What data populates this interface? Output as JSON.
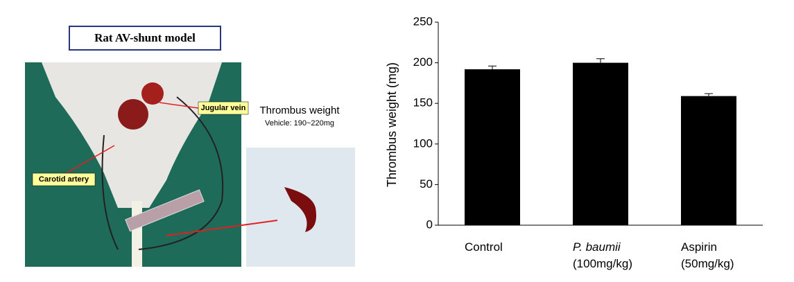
{
  "figure": {
    "title": "Rat AV-shunt model",
    "label_jugular": "Jugular vein",
    "label_carotid": "Carotid artery",
    "inset_title": "Thrombus weight",
    "inset_note": "Vehicle: 190~220mg"
  },
  "chart_data": {
    "type": "bar",
    "y_label": "Thrombus weight (mg)",
    "categories": [
      "Control",
      "P. baumii (100mg/kg)",
      "Aspirin (50mg/kg)"
    ],
    "values": [
      192,
      200,
      159
    ],
    "errors": [
      4,
      5,
      3
    ],
    "color": "#000000",
    "ylim": [
      0,
      250
    ],
    "yticks": [
      0,
      50,
      100,
      150,
      200,
      250
    ]
  }
}
